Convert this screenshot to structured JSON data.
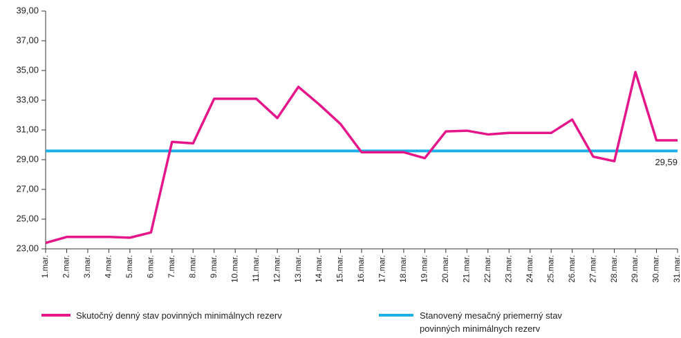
{
  "chart_data": {
    "type": "line",
    "categories": [
      "1.mar.",
      "2.mar.",
      "3.mar.",
      "4.mar.",
      "5.mar.",
      "6.mar.",
      "7.mar.",
      "8.mar.",
      "9.mar.",
      "10.mar.",
      "11.mar.",
      "12.mar.",
      "13.mar.",
      "14.mar.",
      "15.mar.",
      "16.mar.",
      "17.mar.",
      "18.mar.",
      "19.mar.",
      "20.mar.",
      "21.mar.",
      "22.mar.",
      "23.mar.",
      "24.mar.",
      "25.mar.",
      "26.mar.",
      "27.mar.",
      "28.mar.",
      "29.mar.",
      "30.mar.",
      "31.mar."
    ],
    "series": [
      {
        "name": "Skutočný denný stav povinných minimálnych rezerv",
        "color": "#e5168a",
        "values": [
          23.4,
          23.8,
          23.8,
          23.8,
          23.75,
          24.1,
          30.2,
          30.1,
          33.1,
          33.1,
          33.1,
          31.8,
          33.9,
          32.7,
          31.4,
          29.5,
          29.5,
          29.5,
          29.1,
          30.9,
          30.95,
          30.7,
          30.8,
          30.8,
          30.8,
          31.7,
          29.2,
          28.9,
          34.9,
          30.3,
          30.3
        ]
      }
    ],
    "reference_line": {
      "name": "Stanovený mesačný priemerný stav povinných minimálnych rezerv",
      "color": "#1ab0e6",
      "value": 29.59,
      "label": "29,59"
    },
    "ylim": [
      23,
      39
    ],
    "yticks": [
      {
        "value": 23,
        "label": "23,00"
      },
      {
        "value": 25,
        "label": "25,00"
      },
      {
        "value": 27,
        "label": "27,00"
      },
      {
        "value": 29,
        "label": "29,00"
      },
      {
        "value": 31,
        "label": "31,00"
      },
      {
        "value": 33,
        "label": "33,00"
      },
      {
        "value": 35,
        "label": "35,00"
      },
      {
        "value": 37,
        "label": "37,00"
      },
      {
        "value": 39,
        "label": "39,00"
      }
    ],
    "grid": false
  }
}
